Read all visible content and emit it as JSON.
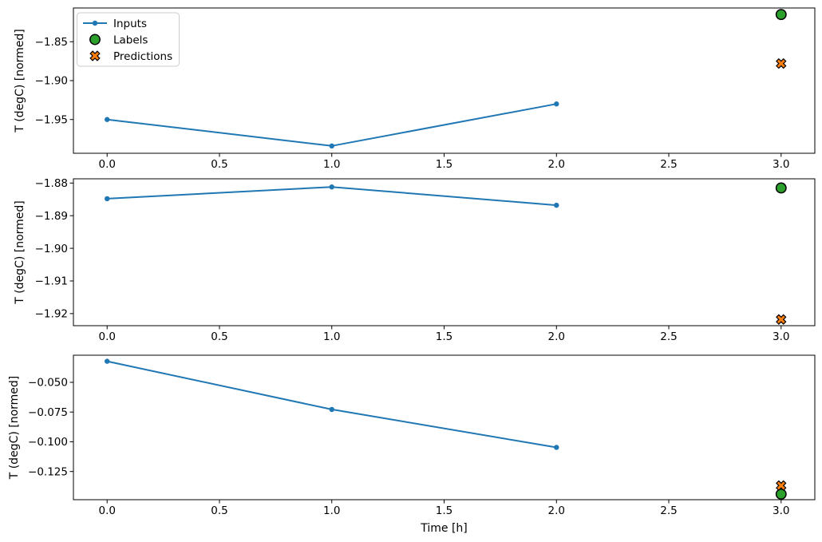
{
  "chart_data": [
    {
      "type": "line",
      "title": "",
      "xlabel": "",
      "ylabel": "T (degC) [normed]",
      "grid": false,
      "xlim": [
        -0.15,
        3.15
      ],
      "ylim": [
        -1.9934,
        -1.8066
      ],
      "xticks": [
        0.0,
        0.5,
        1.0,
        1.5,
        2.0,
        2.5,
        3.0
      ],
      "xtick_labels": [
        "0.0",
        "0.5",
        "1.0",
        "1.5",
        "2.0",
        "2.5",
        "3.0"
      ],
      "yticks": [
        -1.85,
        -1.9,
        -1.95
      ],
      "ytick_labels": [
        "−1.85",
        "−1.90",
        "−1.95"
      ],
      "legend": {
        "visible": true,
        "position": "upper left",
        "entries": [
          "Inputs",
          "Labels",
          "Predictions"
        ]
      },
      "series": [
        {
          "name": "Inputs",
          "kind": "line",
          "marker": "point",
          "color": "#1f77b4",
          "x": [
            0,
            1,
            2
          ],
          "y": [
            -1.95,
            -1.984,
            -1.93
          ]
        },
        {
          "name": "Labels",
          "kind": "scatter",
          "marker": "circle",
          "color": "#2ca02c",
          "edge_color": "#000000",
          "x": [
            3
          ],
          "y": [
            -1.815
          ]
        },
        {
          "name": "Predictions",
          "kind": "scatter",
          "marker": "X",
          "color": "#ff7f0e",
          "edge_color": "#000000",
          "x": [
            3
          ],
          "y": [
            -1.878
          ]
        }
      ]
    },
    {
      "type": "line",
      "title": "",
      "xlabel": "",
      "ylabel": "T (degC) [normed]",
      "grid": false,
      "xlim": [
        -0.15,
        3.15
      ],
      "ylim": [
        -1.9237,
        -1.8787
      ],
      "xticks": [
        0.0,
        0.5,
        1.0,
        1.5,
        2.0,
        2.5,
        3.0
      ],
      "xtick_labels": [
        "0.0",
        "0.5",
        "1.0",
        "1.5",
        "2.0",
        "2.5",
        "3.0"
      ],
      "yticks": [
        -1.88,
        -1.89,
        -1.9,
        -1.91,
        -1.92
      ],
      "ytick_labels": [
        "−1.88",
        "−1.89",
        "−1.90",
        "−1.91",
        "−1.92"
      ],
      "legend": {
        "visible": false
      },
      "series": [
        {
          "name": "Inputs",
          "kind": "line",
          "marker": "point",
          "color": "#1f77b4",
          "x": [
            0,
            1,
            2
          ],
          "y": [
            -1.8848,
            -1.8812,
            -1.8868
          ]
        },
        {
          "name": "Labels",
          "kind": "scatter",
          "marker": "circle",
          "color": "#2ca02c",
          "edge_color": "#000000",
          "x": [
            3
          ],
          "y": [
            -1.8815
          ]
        },
        {
          "name": "Predictions",
          "kind": "scatter",
          "marker": "X",
          "color": "#ff7f0e",
          "edge_color": "#000000",
          "x": [
            3
          ],
          "y": [
            -1.9218
          ]
        }
      ]
    },
    {
      "type": "line",
      "title": "",
      "xlabel": "Time [h]",
      "ylabel": "T (degC) [normed]",
      "grid": false,
      "xlim": [
        -0.15,
        3.15
      ],
      "ylim": [
        -0.1487,
        -0.0272
      ],
      "xticks": [
        0.0,
        0.5,
        1.0,
        1.5,
        2.0,
        2.5,
        3.0
      ],
      "xtick_labels": [
        "0.0",
        "0.5",
        "1.0",
        "1.5",
        "2.0",
        "2.5",
        "3.0"
      ],
      "yticks": [
        -0.05,
        -0.075,
        -0.1,
        -0.125
      ],
      "ytick_labels": [
        "−0.050",
        "−0.075",
        "−0.100",
        "−0.125"
      ],
      "legend": {
        "visible": false
      },
      "series": [
        {
          "name": "Inputs",
          "kind": "line",
          "marker": "point",
          "color": "#1f77b4",
          "x": [
            0,
            1,
            2
          ],
          "y": [
            -0.0323,
            -0.0728,
            -0.1047
          ]
        },
        {
          "name": "Labels",
          "kind": "scatter",
          "marker": "circle",
          "color": "#2ca02c",
          "edge_color": "#000000",
          "x": [
            3
          ],
          "y": [
            -0.144
          ]
        },
        {
          "name": "Predictions",
          "kind": "scatter",
          "marker": "X",
          "color": "#ff7f0e",
          "edge_color": "#000000",
          "x": [
            3
          ],
          "y": [
            -0.1368
          ]
        }
      ]
    }
  ]
}
